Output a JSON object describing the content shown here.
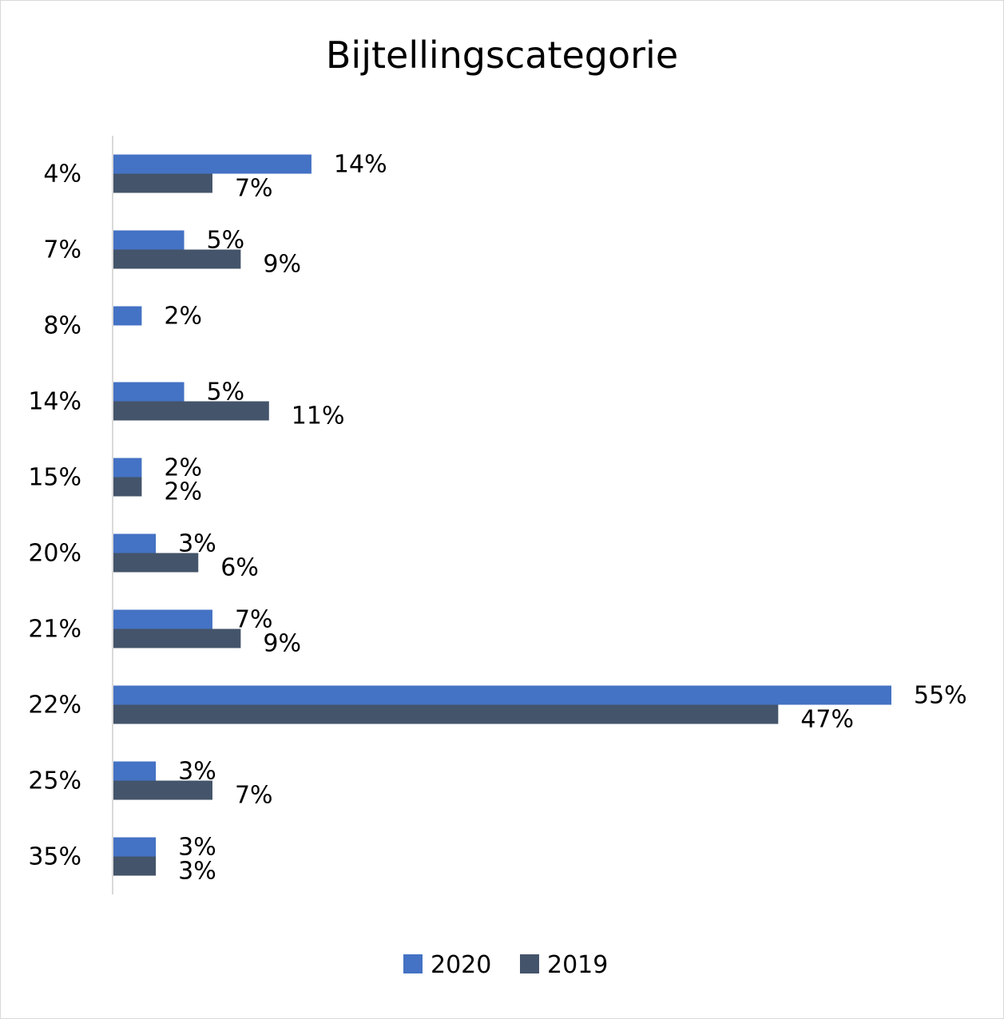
{
  "chart_data": {
    "type": "bar",
    "orientation": "horizontal",
    "title": "Bijtellingscategorie",
    "categories": [
      "4%",
      "7%",
      "8%",
      "14%",
      "15%",
      "20%",
      "21%",
      "22%",
      "25%",
      "35%"
    ],
    "series": [
      {
        "name": "2020",
        "color": "#4472c4",
        "values": [
          14,
          5,
          2,
          5,
          2,
          3,
          7,
          55,
          3,
          3
        ],
        "labels": [
          "14%",
          "5%",
          "2%",
          "5%",
          "2%",
          "3%",
          "7%",
          "55%",
          "3%",
          "3%"
        ]
      },
      {
        "name": "2019",
        "color": "#44546a",
        "values": [
          7,
          9,
          null,
          11,
          2,
          6,
          9,
          47,
          7,
          3
        ],
        "labels": [
          "7%",
          "9%",
          "",
          "11%",
          "2%",
          "6%",
          "9%",
          "47%",
          "7%",
          "3%"
        ]
      }
    ],
    "xlim": [
      0,
      55
    ],
    "grid": false,
    "legend_position": "bottom"
  }
}
